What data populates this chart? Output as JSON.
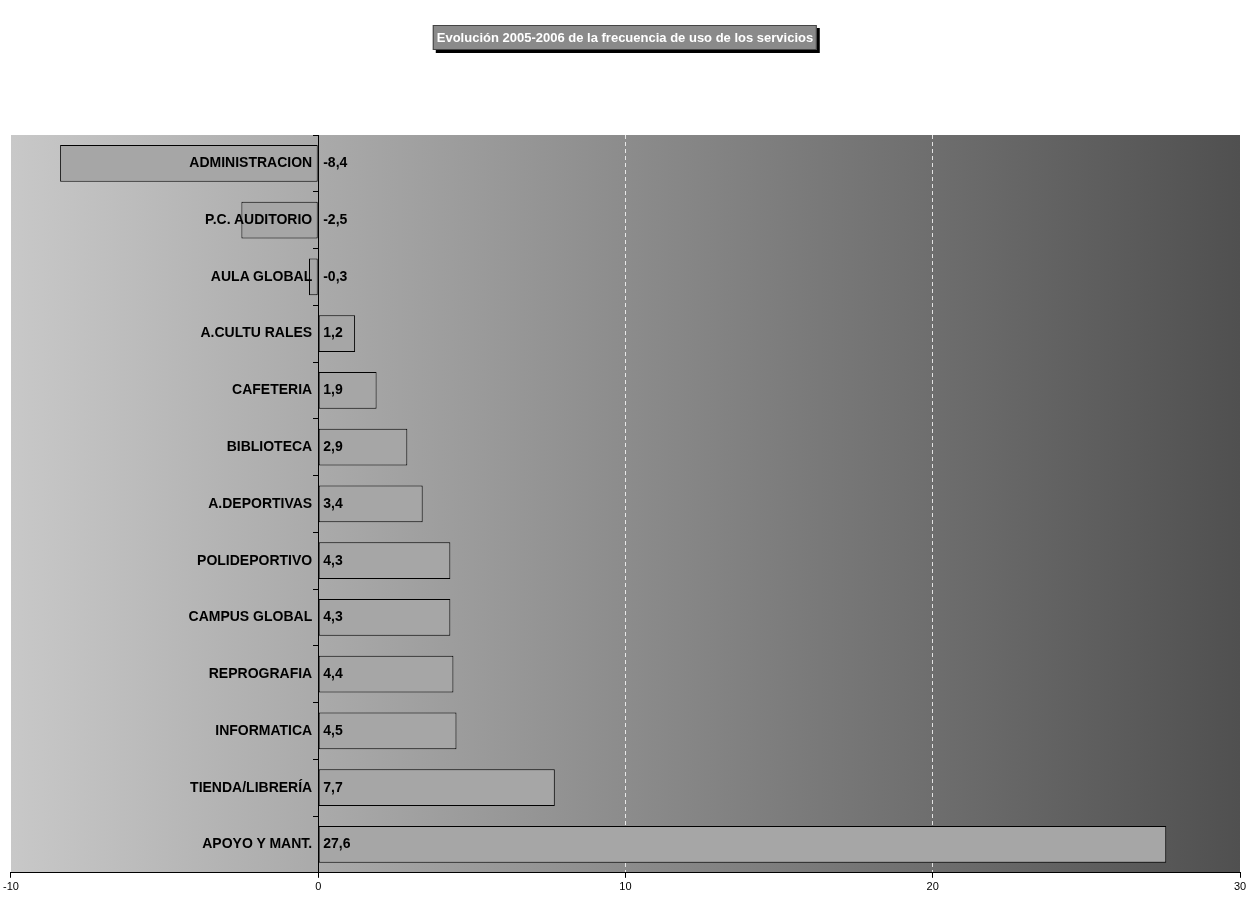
{
  "chart_data": {
    "type": "bar",
    "orientation": "horizontal",
    "title": "Evolución 2005-2006 de la frecuencia de uso de los servicios",
    "categories": [
      "ADMINISTRACION",
      "P.C. AUDITORIO",
      "AULA GLOBAL",
      "A.CULTU RALES",
      "CAFETERIA",
      "BIBLIOTECA",
      "A.DEPORTIVAS",
      "POLIDEPORTIVO",
      "CAMPUS GLOBAL",
      "REPROGRAFIA",
      "INFORMATICA",
      "TIENDA/LIBRERÍA",
      "APOYO Y MANT."
    ],
    "values": [
      -8.4,
      -2.5,
      -0.3,
      1.2,
      1.9,
      2.9,
      3.4,
      4.3,
      4.3,
      4.4,
      4.5,
      7.7,
      27.6
    ],
    "color": "#a6a6a6",
    "value_labels": [
      "-8,4",
      "-2,5",
      "-0,3",
      "1,2",
      "1,9",
      "2,9",
      "3,4",
      "4,3",
      "4,3",
      "4,4",
      "4,5",
      "7,7",
      "27,6"
    ],
    "xlim": [
      -10,
      30
    ],
    "xticks": [
      -10,
      0,
      10,
      20,
      30
    ],
    "grid": "x"
  }
}
